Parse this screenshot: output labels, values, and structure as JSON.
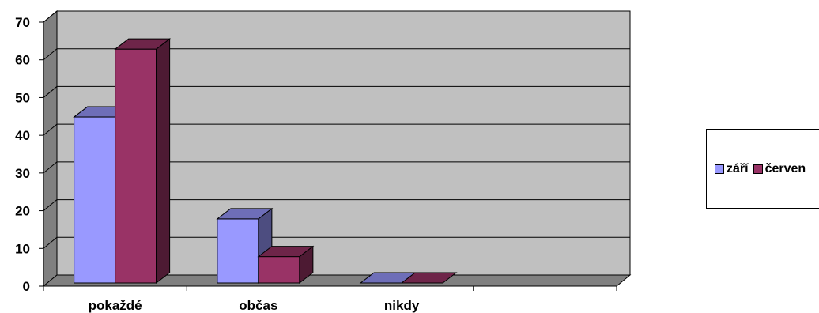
{
  "chart_data": {
    "type": "bar",
    "categories": [
      "pokaždé",
      "občas",
      "nikdy",
      ""
    ],
    "series": [
      {
        "name": "září",
        "values": [
          44,
          17,
          0,
          null
        ],
        "color": "#9999ff"
      },
      {
        "name": "červen",
        "values": [
          62,
          7,
          0,
          null
        ],
        "color": "#993366"
      }
    ],
    "ylim": [
      0,
      70
    ],
    "yticks": [
      0,
      10,
      20,
      30,
      40,
      50,
      60,
      70
    ],
    "grid": true,
    "legend_position": "right",
    "plot_background": "#c0c0c0",
    "title": "",
    "xlabel": "",
    "ylabel": ""
  }
}
